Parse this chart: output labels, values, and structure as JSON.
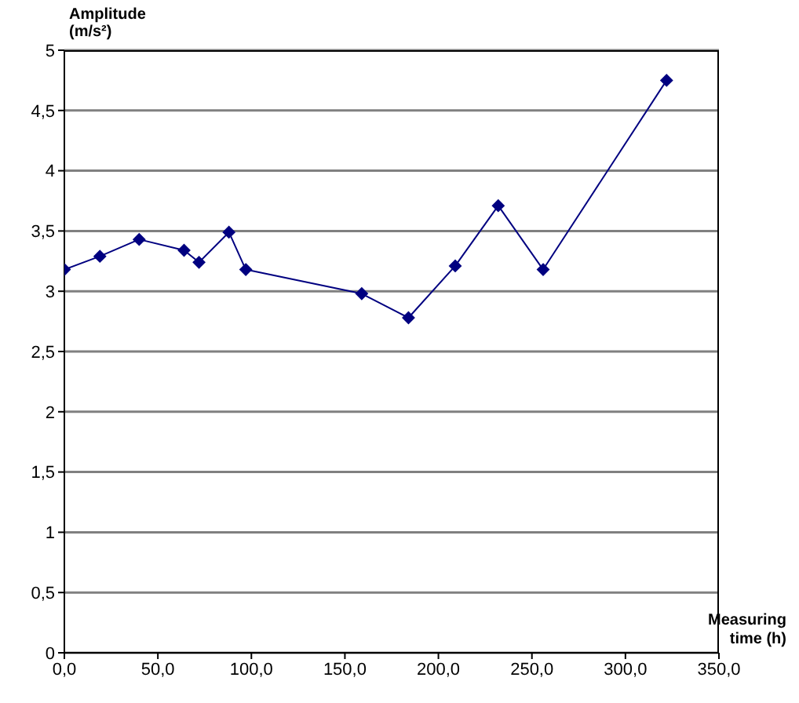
{
  "chart_data": {
    "type": "line",
    "ylabel": "Amplitude (m/s²)",
    "xlabel": "Measuring time (h)",
    "x": [
      0,
      19,
      40,
      64,
      72,
      88,
      97,
      159,
      184,
      209,
      232,
      256,
      322
    ],
    "series": [
      {
        "color": "#000080",
        "values": [
          3.18,
          3.29,
          3.43,
          3.34,
          3.24,
          3.49,
          3.18,
          2.98,
          2.78,
          3.21,
          3.71,
          3.18,
          4.75
        ]
      }
    ],
    "xlim": [
      0,
      350
    ],
    "xticks": [
      {
        "value": 0,
        "label": "0,0"
      },
      {
        "value": 50,
        "label": "50,0"
      },
      {
        "value": 100,
        "label": "100,0"
      },
      {
        "value": 150,
        "label": "150,0"
      },
      {
        "value": 200,
        "label": "200,0"
      },
      {
        "value": 250,
        "label": "250,0"
      },
      {
        "value": 300,
        "label": "300,0"
      },
      {
        "value": 350,
        "label": "350,0"
      }
    ],
    "ylim": [
      0,
      5
    ],
    "yticks": [
      0,
      {
        "value": 0.5,
        "label": "0,5"
      },
      1,
      {
        "value": 1.5,
        "label": "1,5"
      },
      2,
      {
        "value": 2.5,
        "label": "2,5"
      },
      3,
      {
        "value": 3.5,
        "label": "3,5"
      },
      4,
      {
        "value": 4.5,
        "label": "4,5"
      },
      5
    ],
    "grid": "y",
    "marker": "diamond",
    "line_style": "solid",
    "legend": false
  }
}
